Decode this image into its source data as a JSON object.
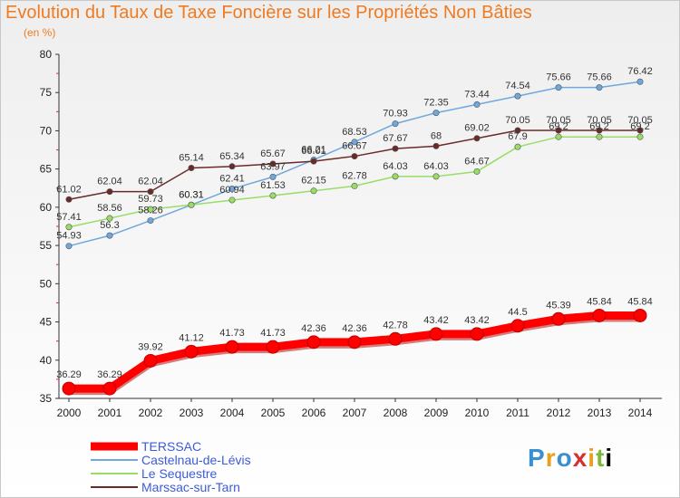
{
  "title": "Evolution du Taux de Taxe Foncière sur les Propriétés Non Bâties",
  "unit": "(en %)",
  "logo": "Proxiti",
  "chart_data": {
    "type": "line",
    "title": "Evolution du Taux de Taxe Foncière sur les Propriétés Non Bâties",
    "ylabel": "(en %)",
    "xlabel": "",
    "ylim": [
      35,
      80
    ],
    "yticks": [
      35,
      40,
      45,
      50,
      55,
      60,
      65,
      70,
      75,
      80
    ],
    "grid": false,
    "legend": "bottom-left",
    "x": [
      "2000",
      "2001",
      "2002",
      "2003",
      "2004",
      "2005",
      "2006",
      "2007",
      "2008",
      "2009",
      "2010",
      "2011",
      "2012",
      "2013",
      "2014"
    ],
    "series": [
      {
        "name": "TERSSAC",
        "color": "#ff0000",
        "values": [
          36.29,
          36.29,
          39.92,
          41.12,
          41.73,
          41.73,
          42.36,
          42.36,
          42.78,
          43.42,
          43.42,
          44.5,
          45.39,
          45.84,
          45.84
        ],
        "labels": [
          "36.29",
          "36.29",
          "39.92",
          "41.12",
          "41.73",
          "41.73",
          "42.36",
          "42.36",
          "42.78",
          "43.42",
          "43.42",
          "44.5",
          "45.39",
          "45.84",
          "45.84"
        ]
      },
      {
        "name": "Castelnau-de-Lévis",
        "color": "#6fa8dc",
        "values": [
          54.93,
          56.3,
          58.26,
          60.31,
          62.41,
          63.97,
          66.21,
          68.53,
          70.93,
          72.35,
          73.44,
          74.54,
          75.66,
          75.66,
          76.42
        ],
        "labels": [
          "54.93",
          "56.3",
          "58.26",
          "60.31",
          "62.41",
          "63.97",
          "66.21",
          "68.53",
          "70.93",
          "72.35",
          "73.44",
          "74.54",
          "75.66",
          "75.66",
          "76.42"
        ]
      },
      {
        "name": "Le Sequestre",
        "color": "#99dd66",
        "values": [
          57.41,
          58.56,
          59.73,
          60.31,
          60.94,
          61.53,
          62.15,
          62.78,
          64.03,
          64.03,
          64.67,
          67.9,
          69.2,
          69.2,
          69.2
        ],
        "labels": [
          "57.41",
          "58.56",
          "59.73",
          "60.31",
          "60.94",
          "61.53",
          "62.15",
          "62.78",
          "64.03",
          "64.03",
          "64.67",
          "67.9",
          "69.2",
          "69.2",
          "69.2"
        ]
      },
      {
        "name": "Marssac-sur-Tarn",
        "color": "#6b2a2a",
        "values": [
          61.02,
          62.04,
          62.04,
          65.14,
          65.34,
          65.67,
          66.01,
          66.67,
          67.67,
          68.0,
          69.02,
          70.05,
          70.05,
          70.05,
          70.05
        ],
        "labels": [
          "61.02",
          "62.04",
          "62.04",
          "65.14",
          "65.34",
          "65.67",
          "66.01",
          "66.67",
          "67.67",
          "68",
          "69.02",
          "70.05",
          "70.05",
          "70.05",
          "70.05"
        ]
      }
    ]
  }
}
